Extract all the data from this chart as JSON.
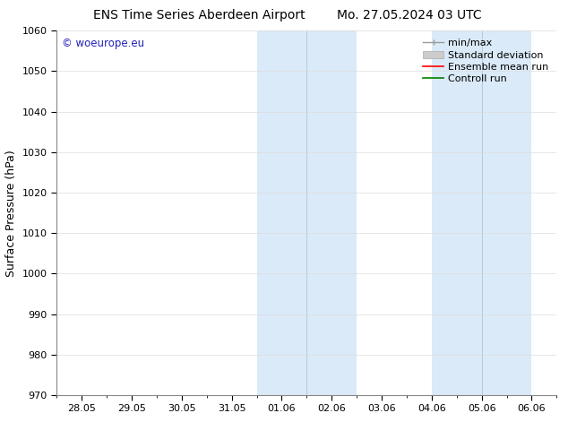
{
  "title_left": "ENS Time Series Aberdeen Airport",
  "title_right": "Mo. 27.05.2024 03 UTC",
  "ylabel": "Surface Pressure (hPa)",
  "ylim": [
    970,
    1060
  ],
  "yticks": [
    970,
    980,
    990,
    1000,
    1010,
    1020,
    1030,
    1040,
    1050,
    1060
  ],
  "xtick_labels": [
    "28.05",
    "29.05",
    "30.05",
    "31.05",
    "01.06",
    "02.06",
    "03.06",
    "04.06",
    "05.06",
    "06.06"
  ],
  "num_xticks": 10,
  "shaded_bands": [
    {
      "xstart": 3.5,
      "xend": 5.5
    },
    {
      "xstart": 7.0,
      "xend": 9.0
    }
  ],
  "shaded_color": "#daeaf8",
  "shaded_inner_line_color": "#b0cce0",
  "watermark": "© woeurope.eu",
  "watermark_color": "#2222bb",
  "legend_items": [
    {
      "label": "min/max",
      "type": "minmax"
    },
    {
      "label": "Standard deviation",
      "type": "std"
    },
    {
      "label": "Ensemble mean run",
      "type": "line",
      "color": "red"
    },
    {
      "label": "Controll run",
      "type": "line",
      "color": "green"
    }
  ],
  "bg_color": "#ffffff",
  "plot_bg_color": "#ffffff",
  "grid_color": "#dddddd",
  "title_fontsize": 10,
  "tick_fontsize": 8,
  "label_fontsize": 9,
  "legend_fontsize": 8
}
